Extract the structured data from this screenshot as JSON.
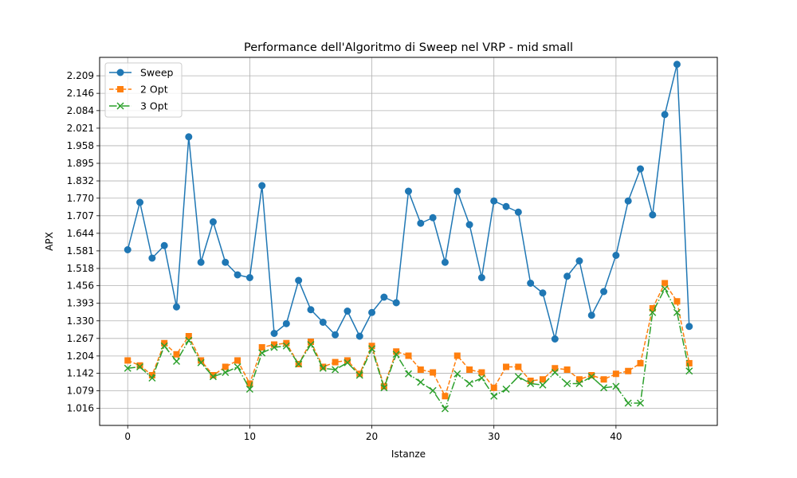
{
  "chart_data": {
    "type": "line",
    "title": "Performance dell'Algoritmo di Sweep nel VRP - mid small",
    "xlabel": "Istanze",
    "ylabel": "APX",
    "xlim": [
      -2.3,
      48.3
    ],
    "ylim": [
      0.955,
      2.275
    ],
    "xticks": [
      0,
      10,
      20,
      30,
      40
    ],
    "yticks": [
      "1.016",
      "1.079",
      "1.142",
      "1.204",
      "1.267",
      "1.330",
      "1.393",
      "1.456",
      "1.518",
      "1.581",
      "1.644",
      "1.707",
      "1.770",
      "1.832",
      "1.895",
      "1.958",
      "2.021",
      "2.084",
      "2.146",
      "2.209"
    ],
    "grid": true,
    "legend": "top-left",
    "x": [
      0,
      1,
      2,
      3,
      4,
      5,
      6,
      7,
      8,
      9,
      10,
      11,
      12,
      13,
      14,
      15,
      16,
      17,
      18,
      19,
      20,
      21,
      22,
      23,
      24,
      25,
      26,
      27,
      28,
      29,
      30,
      31,
      32,
      33,
      34,
      35,
      36,
      37,
      38,
      39,
      40,
      41,
      42,
      43,
      44,
      45,
      46
    ],
    "series": [
      {
        "name": "Sweep",
        "color": "#1f77b4",
        "marker": "circle",
        "linestyle": "solid",
        "values": [
          1.585,
          1.755,
          1.555,
          1.6,
          1.38,
          1.99,
          1.54,
          1.685,
          1.54,
          1.495,
          1.485,
          1.815,
          1.285,
          1.32,
          1.475,
          1.37,
          1.325,
          1.28,
          1.365,
          1.275,
          1.36,
          1.415,
          1.395,
          1.795,
          1.68,
          1.7,
          1.54,
          1.795,
          1.675,
          1.485,
          1.76,
          1.74,
          1.72,
          1.465,
          1.43,
          1.265,
          1.49,
          1.545,
          1.35,
          1.435,
          1.565,
          1.76,
          1.875,
          1.71,
          2.07,
          2.25,
          1.31
        ]
      },
      {
        "name": "2 Opt",
        "color": "#ff7f0e",
        "marker": "square",
        "linestyle": "dashed",
        "values": [
          1.188,
          1.17,
          1.135,
          1.25,
          1.21,
          1.275,
          1.188,
          1.135,
          1.165,
          1.188,
          1.105,
          1.235,
          1.245,
          1.25,
          1.175,
          1.255,
          1.165,
          1.182,
          1.188,
          1.14,
          1.24,
          1.095,
          1.22,
          1.205,
          1.155,
          1.145,
          1.06,
          1.205,
          1.155,
          1.145,
          1.09,
          1.165,
          1.165,
          1.115,
          1.12,
          1.16,
          1.155,
          1.12,
          1.135,
          1.12,
          1.14,
          1.15,
          1.178,
          1.375,
          1.465,
          1.4,
          1.178
        ]
      },
      {
        "name": "3 Opt",
        "color": "#2ca02c",
        "marker": "x",
        "linestyle": "dashdot",
        "values": [
          1.16,
          1.165,
          1.125,
          1.24,
          1.185,
          1.26,
          1.18,
          1.13,
          1.145,
          1.165,
          1.085,
          1.215,
          1.235,
          1.24,
          1.175,
          1.245,
          1.16,
          1.155,
          1.18,
          1.135,
          1.23,
          1.09,
          1.21,
          1.14,
          1.11,
          1.08,
          1.015,
          1.14,
          1.105,
          1.125,
          1.06,
          1.085,
          1.13,
          1.105,
          1.1,
          1.145,
          1.105,
          1.105,
          1.13,
          1.09,
          1.095,
          1.035,
          1.035,
          1.36,
          1.445,
          1.36,
          1.15
        ]
      }
    ]
  }
}
